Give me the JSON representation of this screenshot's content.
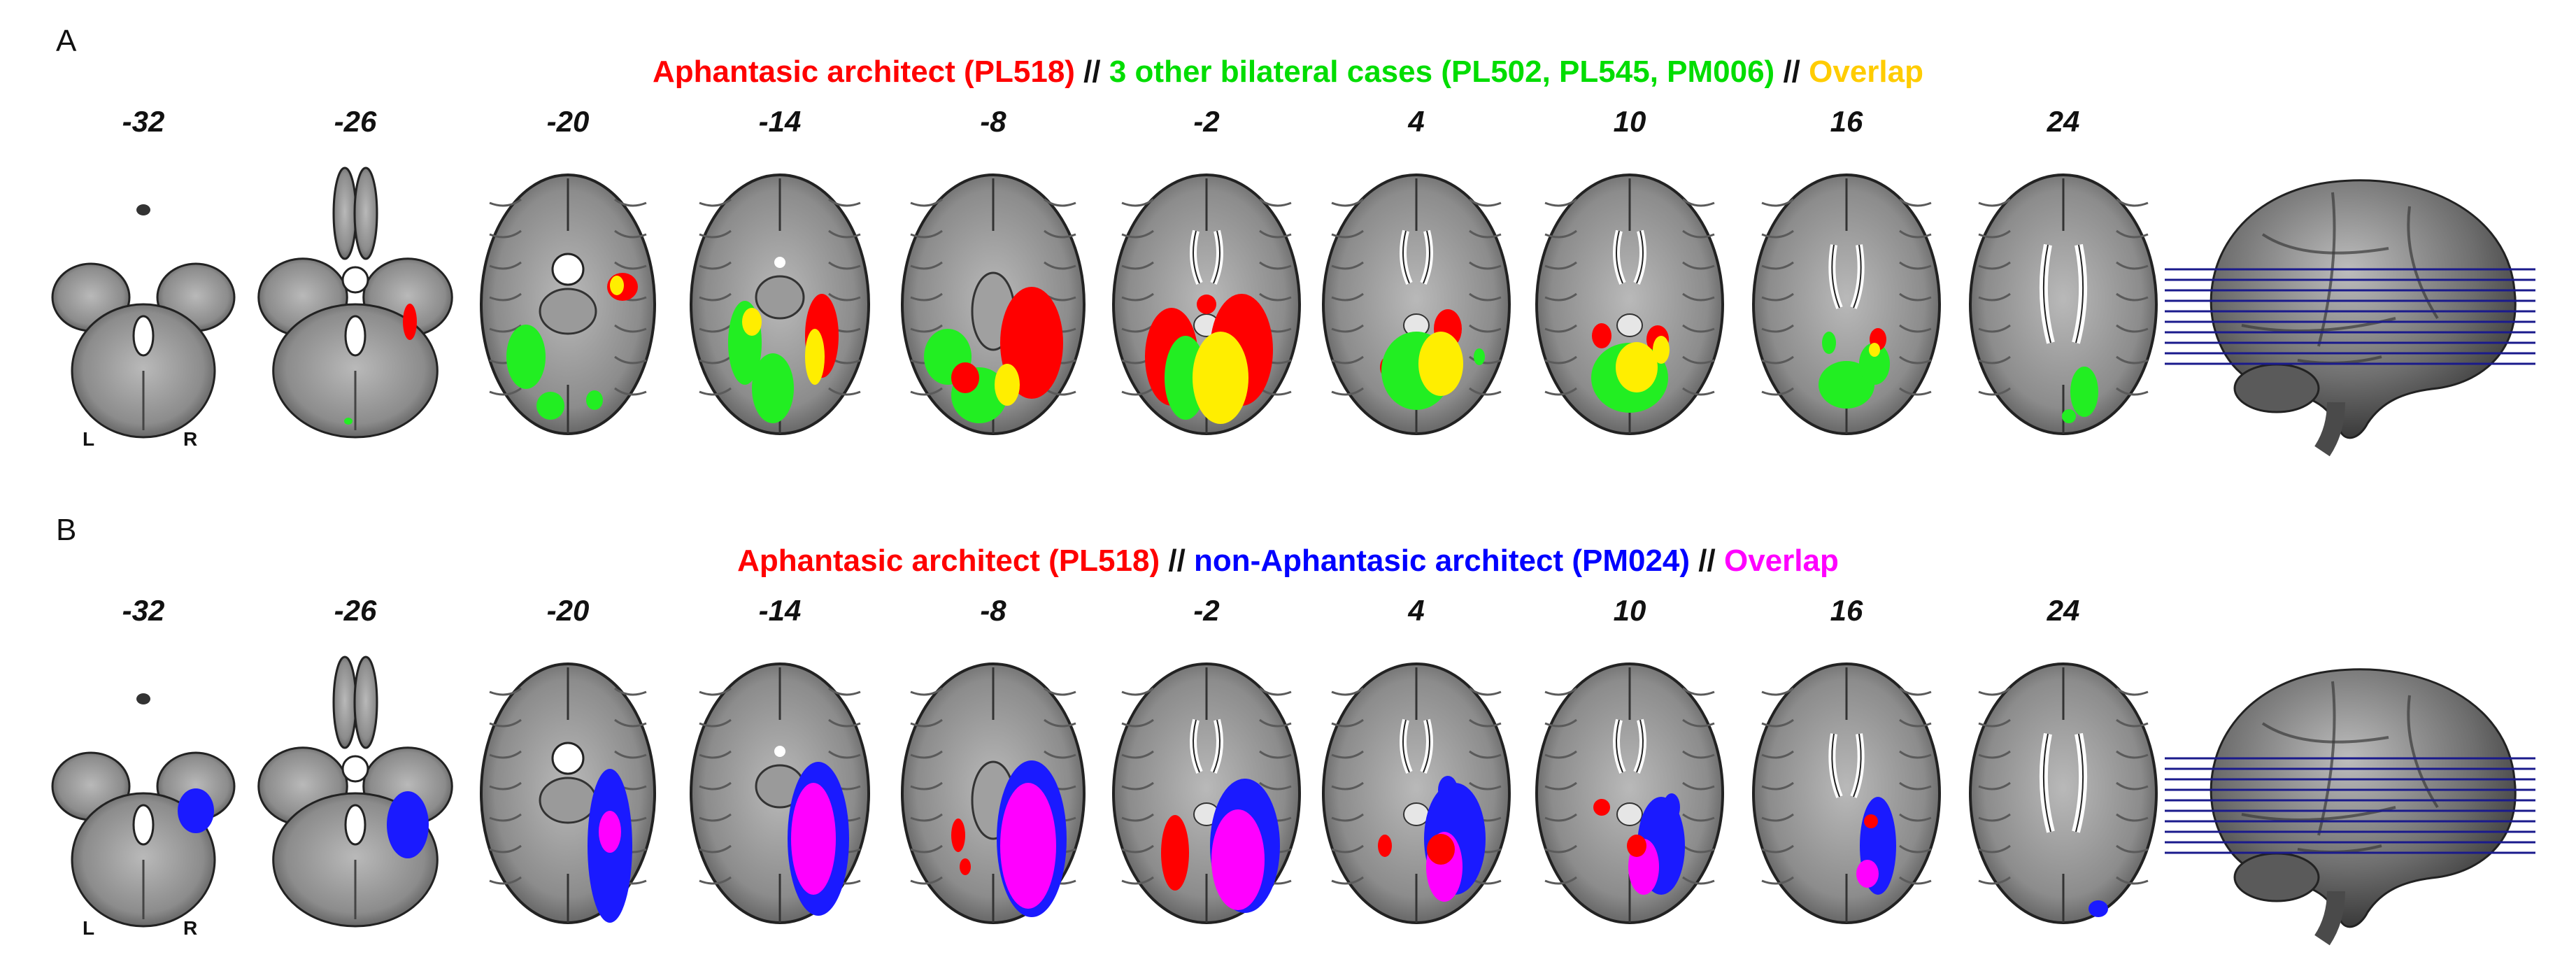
{
  "panels": [
    {
      "letter": "A",
      "title": [
        {
          "text": "Aphantasic architect (PL518)",
          "color": "#ff0000"
        },
        {
          "text": " // ",
          "color": "#111111"
        },
        {
          "text": "3 other bilateral cases (PL502, PL545, PM006)",
          "color": "#00dd00"
        },
        {
          "text": " // ",
          "color": "#111111"
        },
        {
          "text": "Overlap",
          "color": "#ffcc00"
        }
      ],
      "colors": {
        "case": "#ff0000",
        "other": "#22ee22",
        "overlap": "#ffee00"
      }
    },
    {
      "letter": "B",
      "title": [
        {
          "text": "Aphantasic architect (PL518)",
          "color": "#ff0000"
        },
        {
          "text": " // ",
          "color": "#111111"
        },
        {
          "text": "non-Aphantasic architect (PM024)",
          "color": "#0000ff"
        },
        {
          "text": " // ",
          "color": "#111111"
        },
        {
          "text": "Overlap",
          "color": "#ff00ff"
        }
      ],
      "colors": {
        "case": "#ff0000",
        "other": "#1a1aff",
        "overlap": "#ff00ff"
      }
    }
  ],
  "slice_coords": [
    "-32",
    "-26",
    "-20",
    "-14",
    "-8",
    "-2",
    "4",
    "10",
    "16",
    "24"
  ],
  "orientation": {
    "left": "L",
    "right": "R"
  },
  "slice_line_color": "#1a1a8c"
}
